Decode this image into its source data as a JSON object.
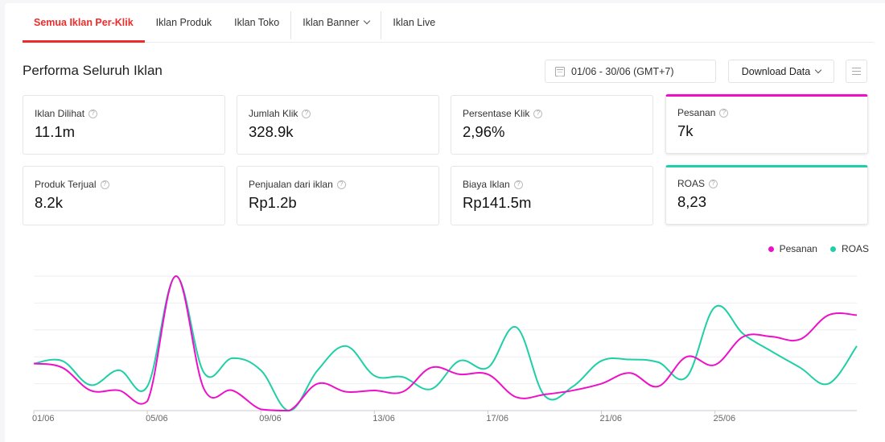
{
  "tabs": [
    {
      "label": "Semua Iklan Per-Klik",
      "active": true
    },
    {
      "label": "Iklan Produk",
      "active": false
    },
    {
      "label": "Iklan Toko",
      "active": false
    },
    {
      "label": "Iklan Banner",
      "active": false,
      "dropdown": true
    },
    {
      "label": "Iklan Live",
      "active": false
    }
  ],
  "header": {
    "title": "Performa Seluruh Iklan",
    "date_range": "01/06 - 30/06 (GMT+7)",
    "download_label": "Download Data"
  },
  "metrics": [
    {
      "label": "Iklan Dilihat",
      "value": "11.1m"
    },
    {
      "label": "Jumlah Klik",
      "value": "328.9k"
    },
    {
      "label": "Persentase Klik",
      "value": "2,96%"
    },
    {
      "label": "Pesanan",
      "value": "7k",
      "selected_color": "#ee10c8"
    },
    {
      "label": "Produk Terjual",
      "value": "8.2k"
    },
    {
      "label": "Penjualan dari iklan",
      "value": "Rp1.2b"
    },
    {
      "label": "Biaya Iklan",
      "value": "Rp141.5m"
    },
    {
      "label": "ROAS",
      "value": "8,23",
      "selected_color": "#1fcfa5"
    }
  ],
  "legend": [
    {
      "label": "Pesanan",
      "color": "#ee10c8"
    },
    {
      "label": "ROAS",
      "color": "#1fcfa5"
    }
  ],
  "chart_data": {
    "type": "line",
    "title": "",
    "xlabel": "",
    "ylabel": "",
    "x": [
      "01/06",
      "02/06",
      "03/06",
      "04/06",
      "05/06",
      "06/06",
      "07/06",
      "08/06",
      "09/06",
      "10/06",
      "11/06",
      "12/06",
      "13/06",
      "14/06",
      "15/06",
      "16/06",
      "17/06",
      "18/06",
      "19/06",
      "20/06",
      "21/06",
      "22/06",
      "23/06",
      "24/06",
      "25/06",
      "26/06",
      "27/06",
      "28/06",
      "29/06",
      "30/06"
    ],
    "tick_labels": [
      "01/06",
      "05/06",
      "09/06",
      "13/06",
      "17/06",
      "21/06",
      "25/06"
    ],
    "ylim": [
      0,
      5
    ],
    "grid": true,
    "y_ticks_visible": false,
    "legend_position": "top-right",
    "series": [
      {
        "name": "Pesanan",
        "color": "#ee10c8",
        "values": [
          1.75,
          1.6,
          0.75,
          0.75,
          0.35,
          5.0,
          0.8,
          0.75,
          0.05,
          0.0,
          1.0,
          0.7,
          0.75,
          0.7,
          1.6,
          1.35,
          1.35,
          0.5,
          0.6,
          0.75,
          1.0,
          1.4,
          0.9,
          2.0,
          1.7,
          2.75,
          2.75,
          2.65,
          3.55,
          3.55
        ]
      },
      {
        "name": "ROAS",
        "color": "#1fcfa5",
        "values": [
          1.75,
          1.85,
          0.95,
          1.5,
          0.9,
          5.0,
          1.4,
          1.95,
          1.5,
          0.0,
          1.5,
          2.4,
          1.3,
          1.25,
          0.8,
          1.85,
          1.6,
          3.1,
          0.55,
          0.9,
          1.85,
          1.9,
          1.8,
          1.25,
          3.85,
          2.85,
          2.2,
          1.6,
          1.0,
          2.4
        ]
      }
    ]
  }
}
